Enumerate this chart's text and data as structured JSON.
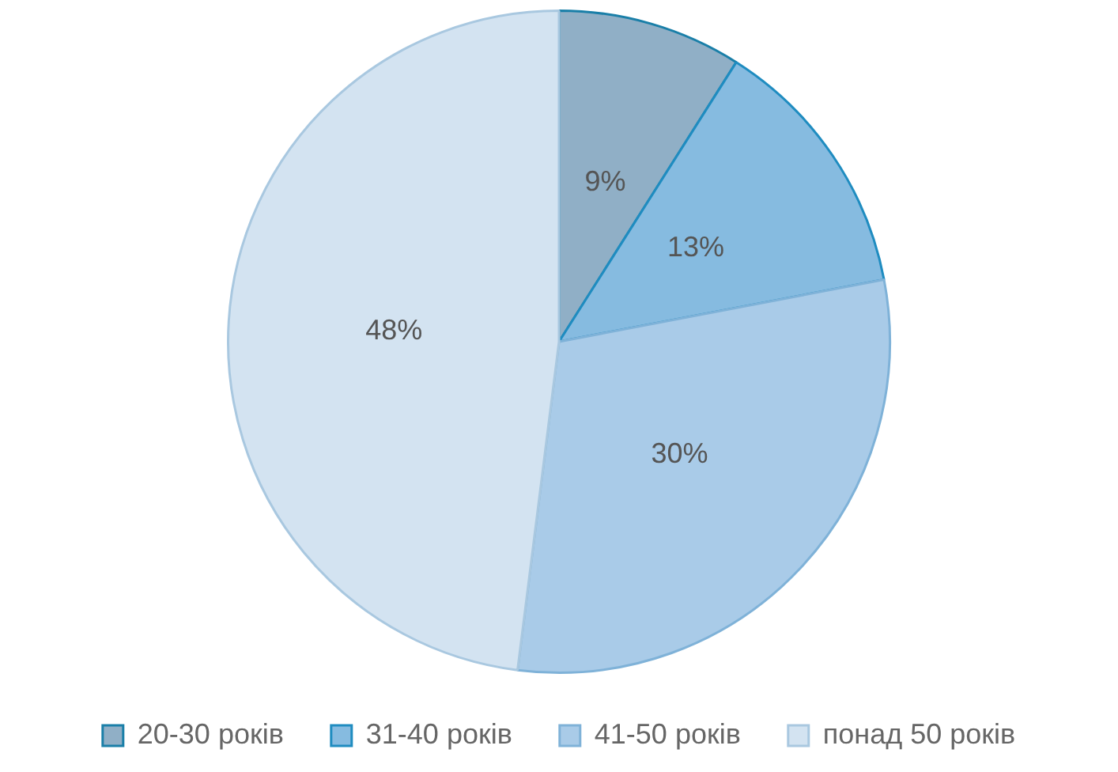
{
  "chart_data": {
    "type": "pie",
    "categories": [
      "20-30 років",
      "31-40 років",
      "41-50 років",
      "понад 50 років"
    ],
    "values": [
      9,
      13,
      30,
      48
    ],
    "colors": [
      "#90afc6",
      "#86bbe0",
      "#a9cbe8",
      "#d3e3f1"
    ],
    "value_labels": [
      "9%",
      "13%",
      "30%",
      "48%"
    ],
    "legend": "bottom"
  }
}
